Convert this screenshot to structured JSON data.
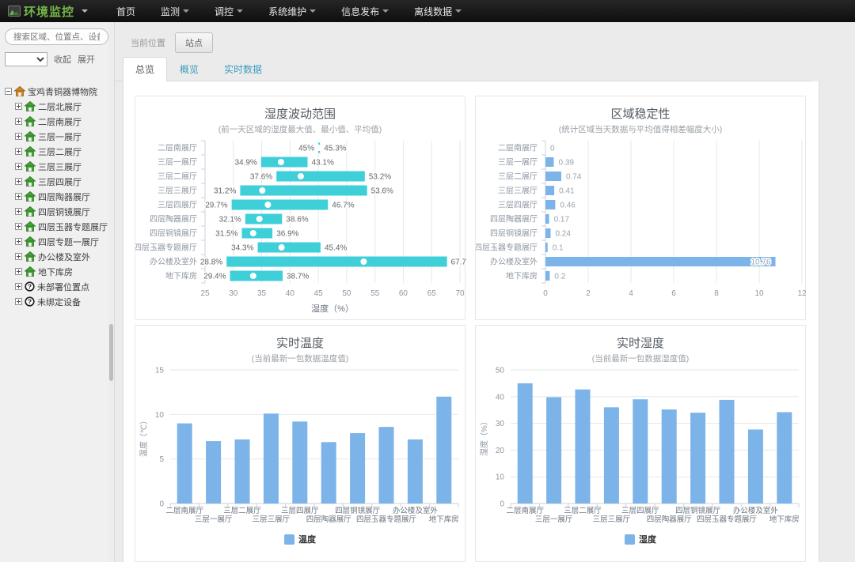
{
  "navbar": {
    "brand": "环境监控",
    "items": [
      {
        "label": "首页",
        "dropdown": false
      },
      {
        "label": "监测",
        "dropdown": true
      },
      {
        "label": "调控",
        "dropdown": true
      },
      {
        "label": "系统维护",
        "dropdown": true
      },
      {
        "label": "信息发布",
        "dropdown": true
      },
      {
        "label": "离线数据",
        "dropdown": true
      }
    ]
  },
  "sidebar": {
    "search_placeholder": "搜索区域、位置点、设备",
    "collapse_label": "收起",
    "expand_label": "展开",
    "tree": {
      "root": {
        "label": "宝鸡青铜器博物院",
        "icon": "building-house-icon",
        "expanded": true
      },
      "children": [
        {
          "label": "二层北展厅",
          "icon": "house-icon"
        },
        {
          "label": "二层南展厅",
          "icon": "house-icon"
        },
        {
          "label": "三层一展厅",
          "icon": "house-icon"
        },
        {
          "label": "三层二展厅",
          "icon": "house-icon"
        },
        {
          "label": "三层三展厅",
          "icon": "house-icon"
        },
        {
          "label": "三层四展厅",
          "icon": "house-icon"
        },
        {
          "label": "四层陶器展厅",
          "icon": "house-icon"
        },
        {
          "label": "四层铜镜展厅",
          "icon": "house-icon"
        },
        {
          "label": "四层玉器专题展厅",
          "icon": "house-icon"
        },
        {
          "label": "四层专题一展厅",
          "icon": "house-icon"
        },
        {
          "label": "办公楼及室外",
          "icon": "house-icon"
        },
        {
          "label": "地下库房",
          "icon": "house-icon"
        },
        {
          "label": "未部署位置点",
          "icon": "question-icon"
        },
        {
          "label": "未绑定设备",
          "icon": "question-icon"
        }
      ]
    }
  },
  "breadcrumb": {
    "label": "当前位置",
    "button_label": "站点"
  },
  "tabs": [
    {
      "label": "总览",
      "active": true
    },
    {
      "label": "概览",
      "active": false
    },
    {
      "label": "实时数据",
      "active": false
    }
  ],
  "colors": {
    "teal_bar": "#3ecfd9",
    "blue_bar": "#7cb3e8"
  },
  "chart_data": [
    {
      "type": "bar",
      "orientation": "horizontal-range",
      "title": "湿度波动范围",
      "subtitle": "(前一天区域的湿度最大值、最小值、平均值)",
      "categories": [
        "二层南展厅",
        "三层一展厅",
        "三层二展厅",
        "三层三展厅",
        "三层四展厅",
        "四层陶器展厅",
        "四层铜镜展厅",
        "四层玉器专题展厅",
        "办公楼及室外",
        "地下库房"
      ],
      "ranges": [
        [
          45,
          45.3
        ],
        [
          34.9,
          43.1
        ],
        [
          37.6,
          53.2
        ],
        [
          31.2,
          53.6
        ],
        [
          29.7,
          46.7
        ],
        [
          32.1,
          38.6
        ],
        [
          31.5,
          36.9
        ],
        [
          34.3,
          45.4
        ],
        [
          28.8,
          67.7
        ],
        [
          29.4,
          38.7
        ]
      ],
      "averages": [
        45.1,
        38.4,
        41.9,
        35.1,
        36.1,
        34.6,
        33.5,
        38.5,
        53.0,
        33.5
      ],
      "unit": "%",
      "xlabel": "湿度（%）",
      "xlim": [
        25,
        70
      ],
      "xticks": [
        25,
        30,
        35,
        40,
        45,
        50,
        55,
        60,
        65,
        70
      ],
      "grid": true,
      "bar_color": "#3ecfd9"
    },
    {
      "type": "bar",
      "orientation": "horizontal",
      "title": "区域稳定性",
      "subtitle": "(统计区域当天数据与平均值得相差幅度大小)",
      "categories": [
        "二层南展厅",
        "三层一展厅",
        "三层二展厅",
        "三层三展厅",
        "三层四展厅",
        "四层陶器展厅",
        "四层铜镜展厅",
        "四层玉器专题展厅",
        "办公楼及室外",
        "地下库房"
      ],
      "values": [
        0,
        0.39,
        0.74,
        0.41,
        0.46,
        0.17,
        0.24,
        0.1,
        10.76,
        0.2
      ],
      "xlim": [
        0,
        12
      ],
      "xticks": [
        0,
        2,
        4,
        6,
        8,
        10,
        12
      ],
      "grid": true,
      "bar_color": "#7cb3e8"
    },
    {
      "type": "bar",
      "orientation": "vertical",
      "title": "实时温度",
      "subtitle": "(当前最新一包数据温度值)",
      "categories": [
        "二层南展厅",
        "三层一展厅",
        "三层二展厅",
        "三层三展厅",
        "三层四展厅",
        "四层陶器展厅",
        "四层铜镜展厅",
        "四层玉器专题展厅",
        "办公楼及室外",
        "地下库房"
      ],
      "values": [
        9,
        7,
        7.2,
        10.1,
        9.2,
        6.9,
        7.9,
        8.6,
        7.2,
        12
      ],
      "ylabel": "温度（℃）",
      "ylim": [
        0,
        15
      ],
      "yticks": [
        0,
        5,
        10,
        15
      ],
      "legend": "温度",
      "grid": true,
      "bar_color": "#7cb3e8"
    },
    {
      "type": "bar",
      "orientation": "vertical",
      "title": "实时湿度",
      "subtitle": "(当前最新一包数据湿度值)",
      "categories": [
        "二层南展厅",
        "三层一展厅",
        "三层二展厅",
        "三层三展厅",
        "三层四展厅",
        "四层陶器展厅",
        "四层铜镜展厅",
        "四层玉器专题展厅",
        "办公楼及室外",
        "地下库房"
      ],
      "values": [
        45,
        39.8,
        42.7,
        36,
        39,
        35.2,
        34,
        38.8,
        27.7,
        34.2
      ],
      "ylabel": "湿度（%）",
      "ylim": [
        0,
        50
      ],
      "yticks": [
        0,
        10,
        20,
        30,
        40,
        50
      ],
      "legend": "湿度",
      "grid": true,
      "bar_color": "#7cb3e8"
    }
  ]
}
